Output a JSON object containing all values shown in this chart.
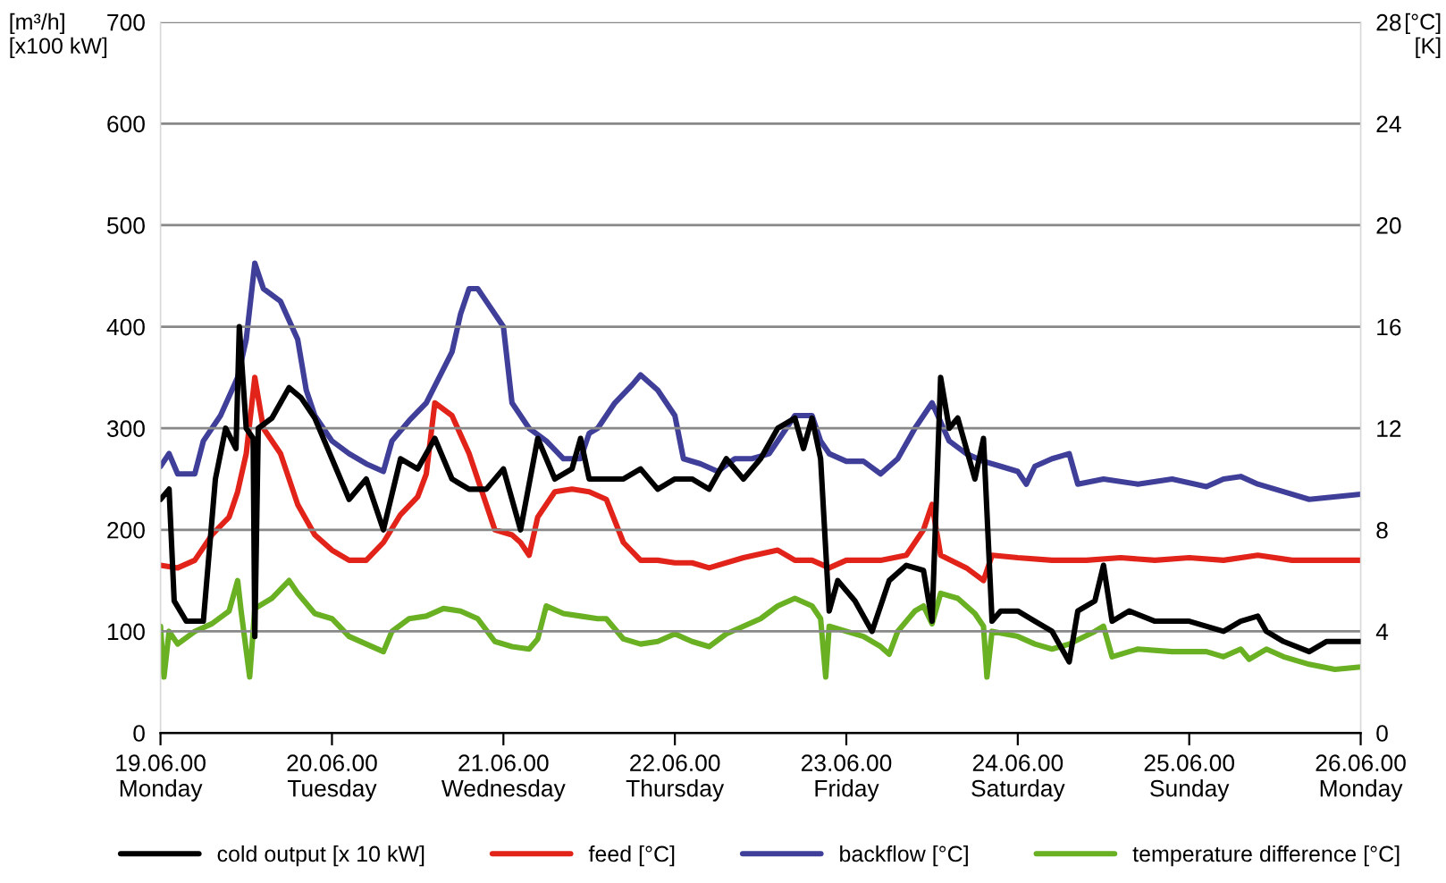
{
  "chart_data": {
    "type": "line",
    "ylabel": "[m³/h]\n[x100 kW]",
    "y2label": "[°C]\n[K]",
    "xlim": [
      "2000-06-19",
      "2000-06-26"
    ],
    "xticks": [
      {
        "value": "2000-06-19",
        "label": "19.06.00\nMonday"
      },
      {
        "value": "2000-06-20",
        "label": "20.06.00\nTuesday"
      },
      {
        "value": "2000-06-21",
        "label": "21.06.00\nWednesday"
      },
      {
        "value": "2000-06-22",
        "label": "22.06.00\nThursday"
      },
      {
        "value": "2000-06-23",
        "label": "23.06.00\nFriday"
      },
      {
        "value": "2000-06-24",
        "label": "24.06.00\nSaturday"
      },
      {
        "value": "2000-06-25",
        "label": "25.06.00\nSunday"
      },
      {
        "value": "2000-06-26",
        "label": "26.06.00\nMonday"
      }
    ],
    "ylim": [
      0,
      700
    ],
    "yticks": [
      0,
      100,
      200,
      300,
      400,
      500,
      600,
      700
    ],
    "y2lim": [
      0,
      28
    ],
    "y2ticks": [
      0,
      4,
      8,
      12,
      16,
      20,
      24,
      28
    ],
    "grid": "y",
    "legend": "bottom",
    "marker": "none",
    "line_style": "solid",
    "series": [
      {
        "name": "cold output [x 10 kW]",
        "color": "#000000",
        "x": [
          "2000-06-19T00:00",
          "2000-06-19T01:12",
          "2000-06-19T01:55",
          "2000-06-19T03:36",
          "2000-06-19T06:00",
          "2000-06-19T07:41",
          "2000-06-19T09:07",
          "2000-06-19T10:34",
          "2000-06-19T11:02",
          "2000-06-19T12:00",
          "2000-06-19T12:58",
          "2000-06-19T13:12",
          "2000-06-19T13:41",
          "2000-06-19T15:36",
          "2000-06-19T18:00",
          "2000-06-19T19:41",
          "2000-06-19T21:36",
          "2000-06-20T00:00",
          "2000-06-20T02:24",
          "2000-06-20T04:48",
          "2000-06-20T07:12",
          "2000-06-20T09:36",
          "2000-06-20T12:00",
          "2000-06-20T14:24",
          "2000-06-20T16:48",
          "2000-06-20T19:12",
          "2000-06-20T21:36",
          "2000-06-21T00:00",
          "2000-06-21T02:24",
          "2000-06-21T04:48",
          "2000-06-21T07:12",
          "2000-06-21T09:36",
          "2000-06-21T10:48",
          "2000-06-21T12:00",
          "2000-06-21T14:24",
          "2000-06-21T16:48",
          "2000-06-21T19:12",
          "2000-06-21T21:36",
          "2000-06-22T00:00",
          "2000-06-22T02:24",
          "2000-06-22T04:48",
          "2000-06-22T07:12",
          "2000-06-22T09:36",
          "2000-06-22T12:00",
          "2000-06-22T14:24",
          "2000-06-22T16:48",
          "2000-06-22T18:00",
          "2000-06-22T19:12",
          "2000-06-22T20:24",
          "2000-06-22T21:36",
          "2000-06-22T22:48",
          "2000-06-23T01:12",
          "2000-06-23T03:36",
          "2000-06-23T06:00",
          "2000-06-23T08:24",
          "2000-06-23T10:48",
          "2000-06-23T12:00",
          "2000-06-23T13:12",
          "2000-06-23T14:24",
          "2000-06-23T15:36",
          "2000-06-23T18:00",
          "2000-06-23T19:12",
          "2000-06-23T20:24",
          "2000-06-23T21:36",
          "2000-06-24T00:00",
          "2000-06-24T02:24",
          "2000-06-24T04:48",
          "2000-06-24T07:12",
          "2000-06-24T08:24",
          "2000-06-24T10:48",
          "2000-06-24T12:00",
          "2000-06-24T13:12",
          "2000-06-24T15:36",
          "2000-06-24T19:12",
          "2000-06-25T00:00",
          "2000-06-25T04:48",
          "2000-06-25T07:12",
          "2000-06-25T09:36",
          "2000-06-25T10:48",
          "2000-06-25T13:12",
          "2000-06-25T16:48",
          "2000-06-25T19:12",
          "2000-06-26T00:00"
        ],
        "values": [
          230,
          240,
          130,
          110,
          110,
          250,
          300,
          280,
          400,
          300,
          290,
          95,
          300,
          310,
          340,
          330,
          310,
          270,
          230,
          250,
          200,
          270,
          260,
          290,
          250,
          240,
          240,
          260,
          200,
          290,
          250,
          260,
          290,
          250,
          250,
          250,
          260,
          240,
          250,
          250,
          240,
          270,
          250,
          270,
          300,
          310,
          280,
          310,
          270,
          120,
          150,
          130,
          100,
          150,
          165,
          160,
          110,
          350,
          300,
          310,
          250,
          290,
          110,
          120,
          120,
          110,
          100,
          70,
          120,
          130,
          165,
          110,
          120,
          110,
          110,
          100,
          110,
          115,
          100,
          90,
          80,
          90,
          90
        ]
      },
      {
        "name": "feed [°C]",
        "color": "#e2231a",
        "axis": "y2",
        "x": [
          "2000-06-19T00:00",
          "2000-06-19T02:24",
          "2000-06-19T04:48",
          "2000-06-19T07:12",
          "2000-06-19T09:36",
          "2000-06-19T10:48",
          "2000-06-19T12:00",
          "2000-06-19T13:12",
          "2000-06-19T14:24",
          "2000-06-19T16:48",
          "2000-06-19T19:12",
          "2000-06-19T21:36",
          "2000-06-20T00:00",
          "2000-06-20T02:24",
          "2000-06-20T04:48",
          "2000-06-20T07:12",
          "2000-06-20T09:36",
          "2000-06-20T12:00",
          "2000-06-20T13:12",
          "2000-06-20T14:24",
          "2000-06-20T16:48",
          "2000-06-20T19:12",
          "2000-06-20T20:24",
          "2000-06-20T22:48",
          "2000-06-21T01:12",
          "2000-06-21T02:24",
          "2000-06-21T03:36",
          "2000-06-21T04:48",
          "2000-06-21T07:12",
          "2000-06-21T09:36",
          "2000-06-21T12:00",
          "2000-06-21T14:24",
          "2000-06-21T16:48",
          "2000-06-21T19:12",
          "2000-06-21T21:36",
          "2000-06-22T00:00",
          "2000-06-22T02:24",
          "2000-06-22T04:48",
          "2000-06-22T09:36",
          "2000-06-22T14:24",
          "2000-06-22T16:48",
          "2000-06-22T19:12",
          "2000-06-22T21:36",
          "2000-06-23T00:00",
          "2000-06-23T04:48",
          "2000-06-23T08:24",
          "2000-06-23T10:48",
          "2000-06-23T12:00",
          "2000-06-23T13:12",
          "2000-06-23T16:48",
          "2000-06-23T19:12",
          "2000-06-23T20:24",
          "2000-06-24T00:00",
          "2000-06-24T04:48",
          "2000-06-24T09:36",
          "2000-06-24T14:24",
          "2000-06-24T19:12",
          "2000-06-25T00:00",
          "2000-06-25T04:48",
          "2000-06-25T09:36",
          "2000-06-25T14:24",
          "2000-06-26T00:00"
        ],
        "values": [
          6.6,
          6.5,
          6.8,
          7.8,
          8.5,
          9.5,
          11.0,
          14.0,
          12.0,
          11.0,
          9.0,
          7.8,
          7.2,
          6.8,
          6.8,
          7.5,
          8.6,
          9.3,
          10.2,
          13.0,
          12.5,
          11.0,
          10.0,
          8.0,
          7.8,
          7.5,
          7.0,
          8.5,
          9.5,
          9.6,
          9.5,
          9.2,
          7.5,
          6.8,
          6.8,
          6.7,
          6.7,
          6.5,
          6.9,
          7.2,
          6.8,
          6.8,
          6.5,
          6.8,
          6.8,
          7.0,
          8.0,
          9.0,
          7.0,
          6.5,
          6.0,
          7.0,
          6.9,
          6.8,
          6.8,
          6.9,
          6.8,
          6.9,
          6.8,
          7.0,
          6.8,
          6.8
        ]
      },
      {
        "name": "backflow [°C]",
        "color": "#3f3f9a",
        "axis": "y2",
        "x": [
          "2000-06-19T00:00",
          "2000-06-19T01:12",
          "2000-06-19T02:24",
          "2000-06-19T04:48",
          "2000-06-19T06:00",
          "2000-06-19T08:24",
          "2000-06-19T10:48",
          "2000-06-19T12:00",
          "2000-06-19T13:12",
          "2000-06-19T14:24",
          "2000-06-19T16:48",
          "2000-06-19T19:12",
          "2000-06-19T20:24",
          "2000-06-19T21:36",
          "2000-06-20T00:00",
          "2000-06-20T02:24",
          "2000-06-20T04:48",
          "2000-06-20T07:12",
          "2000-06-20T08:24",
          "2000-06-20T10:48",
          "2000-06-20T13:12",
          "2000-06-20T16:48",
          "2000-06-20T18:00",
          "2000-06-20T19:12",
          "2000-06-20T20:24",
          "2000-06-20T21:36",
          "2000-06-21T00:00",
          "2000-06-21T01:12",
          "2000-06-21T03:36",
          "2000-06-21T06:00",
          "2000-06-21T08:24",
          "2000-06-21T10:48",
          "2000-06-21T12:00",
          "2000-06-21T13:12",
          "2000-06-21T15:36",
          "2000-06-21T18:00",
          "2000-06-21T19:12",
          "2000-06-21T21:36",
          "2000-06-22T00:00",
          "2000-06-22T01:12",
          "2000-06-22T03:36",
          "2000-06-22T06:00",
          "2000-06-22T08:24",
          "2000-06-22T10:48",
          "2000-06-22T13:12",
          "2000-06-22T15:36",
          "2000-06-22T16:48",
          "2000-06-22T19:12",
          "2000-06-22T20:24",
          "2000-06-22T21:36",
          "2000-06-23T00:00",
          "2000-06-23T02:24",
          "2000-06-23T04:48",
          "2000-06-23T07:12",
          "2000-06-23T09:36",
          "2000-06-23T10:48",
          "2000-06-23T12:00",
          "2000-06-23T14:24",
          "2000-06-23T16:48",
          "2000-06-23T19:12",
          "2000-06-23T21:36",
          "2000-06-24T00:00",
          "2000-06-24T01:12",
          "2000-06-24T02:24",
          "2000-06-24T04:48",
          "2000-06-24T07:12",
          "2000-06-24T08:24",
          "2000-06-24T12:00",
          "2000-06-24T16:48",
          "2000-06-24T21:36",
          "2000-06-25T02:24",
          "2000-06-25T04:48",
          "2000-06-25T07:12",
          "2000-06-25T09:36",
          "2000-06-25T13:12",
          "2000-06-25T16:48",
          "2000-06-26T00:00"
        ],
        "values": [
          10.5,
          11.0,
          10.2,
          10.2,
          11.5,
          12.5,
          14.0,
          15.5,
          18.5,
          17.5,
          17.0,
          15.5,
          13.5,
          12.5,
          11.5,
          11.0,
          10.6,
          10.3,
          11.5,
          12.3,
          13.0,
          15.0,
          16.5,
          17.5,
          17.5,
          17.0,
          16.0,
          13.0,
          12.0,
          11.5,
          10.8,
          10.8,
          11.8,
          12.0,
          13.0,
          13.7,
          14.1,
          13.5,
          12.5,
          10.8,
          10.6,
          10.3,
          10.8,
          10.8,
          11.0,
          12.0,
          12.5,
          12.5,
          11.5,
          11.0,
          10.7,
          10.7,
          10.2,
          10.8,
          12.0,
          12.5,
          13.0,
          11.5,
          11.0,
          10.7,
          10.5,
          10.3,
          9.8,
          10.5,
          10.8,
          11.0,
          9.8,
          10.0,
          9.8,
          10.0,
          9.7,
          10.0,
          10.1,
          9.8,
          9.5,
          9.2,
          9.4
        ]
      },
      {
        "name": "temperature difference [°C]",
        "color": "#6ab023",
        "axis": "y2",
        "x": [
          "2000-06-19T00:00",
          "2000-06-19T00:29",
          "2000-06-19T01:12",
          "2000-06-19T02:24",
          "2000-06-19T04:48",
          "2000-06-19T07:12",
          "2000-06-19T09:36",
          "2000-06-19T10:48",
          "2000-06-19T11:17",
          "2000-06-19T12:29",
          "2000-06-19T13:12",
          "2000-06-19T15:36",
          "2000-06-19T18:00",
          "2000-06-19T19:12",
          "2000-06-19T21:36",
          "2000-06-20T00:00",
          "2000-06-20T02:24",
          "2000-06-20T04:48",
          "2000-06-20T07:12",
          "2000-06-20T08:24",
          "2000-06-20T10:48",
          "2000-06-20T13:12",
          "2000-06-20T15:36",
          "2000-06-20T18:00",
          "2000-06-20T20:24",
          "2000-06-20T22:48",
          "2000-06-21T01:12",
          "2000-06-21T03:36",
          "2000-06-21T04:48",
          "2000-06-21T06:00",
          "2000-06-21T08:24",
          "2000-06-21T10:48",
          "2000-06-21T13:12",
          "2000-06-21T14:24",
          "2000-06-21T16:48",
          "2000-06-21T19:12",
          "2000-06-21T21:36",
          "2000-06-22T00:00",
          "2000-06-22T02:24",
          "2000-06-22T04:48",
          "2000-06-22T07:12",
          "2000-06-22T09:36",
          "2000-06-22T12:00",
          "2000-06-22T14:24",
          "2000-06-22T16:48",
          "2000-06-22T19:12",
          "2000-06-22T20:24",
          "2000-06-22T21:07",
          "2000-06-22T21:36",
          "2000-06-23T00:00",
          "2000-06-23T02:24",
          "2000-06-23T04:48",
          "2000-06-23T06:00",
          "2000-06-23T07:12",
          "2000-06-23T09:36",
          "2000-06-23T10:48",
          "2000-06-23T12:00",
          "2000-06-23T13:12",
          "2000-06-23T15:36",
          "2000-06-23T18:00",
          "2000-06-23T19:12",
          "2000-06-23T19:41",
          "2000-06-23T20:24",
          "2000-06-24T00:00",
          "2000-06-24T02:24",
          "2000-06-24T04:48",
          "2000-06-24T07:12",
          "2000-06-24T10:48",
          "2000-06-24T12:00",
          "2000-06-24T13:12",
          "2000-06-24T16:48",
          "2000-06-24T21:36",
          "2000-06-25T02:24",
          "2000-06-25T04:48",
          "2000-06-25T07:12",
          "2000-06-25T08:24",
          "2000-06-25T10:48",
          "2000-06-25T13:12",
          "2000-06-25T16:48",
          "2000-06-25T20:24",
          "2000-06-26T00:00"
        ],
        "values": [
          4.2,
          2.2,
          4.0,
          3.5,
          4.0,
          4.3,
          4.8,
          6.0,
          4.8,
          2.2,
          4.9,
          5.3,
          6.0,
          5.5,
          4.7,
          4.5,
          3.8,
          3.5,
          3.2,
          4.0,
          4.5,
          4.6,
          4.9,
          4.8,
          4.5,
          3.6,
          3.4,
          3.3,
          3.7,
          5.0,
          4.7,
          4.6,
          4.5,
          4.5,
          3.7,
          3.5,
          3.6,
          3.9,
          3.6,
          3.4,
          3.9,
          4.2,
          4.5,
          5.0,
          5.3,
          5.0,
          4.5,
          2.2,
          4.2,
          4.0,
          3.8,
          3.4,
          3.1,
          4.0,
          4.8,
          5.0,
          4.3,
          5.5,
          5.3,
          4.7,
          4.2,
          2.2,
          4.0,
          3.8,
          3.5,
          3.3,
          3.5,
          4.0,
          4.2,
          3.0,
          3.3,
          3.2,
          3.2,
          3.0,
          3.3,
          2.9,
          3.3,
          3.0,
          2.7,
          2.5,
          2.6
        ]
      }
    ]
  }
}
